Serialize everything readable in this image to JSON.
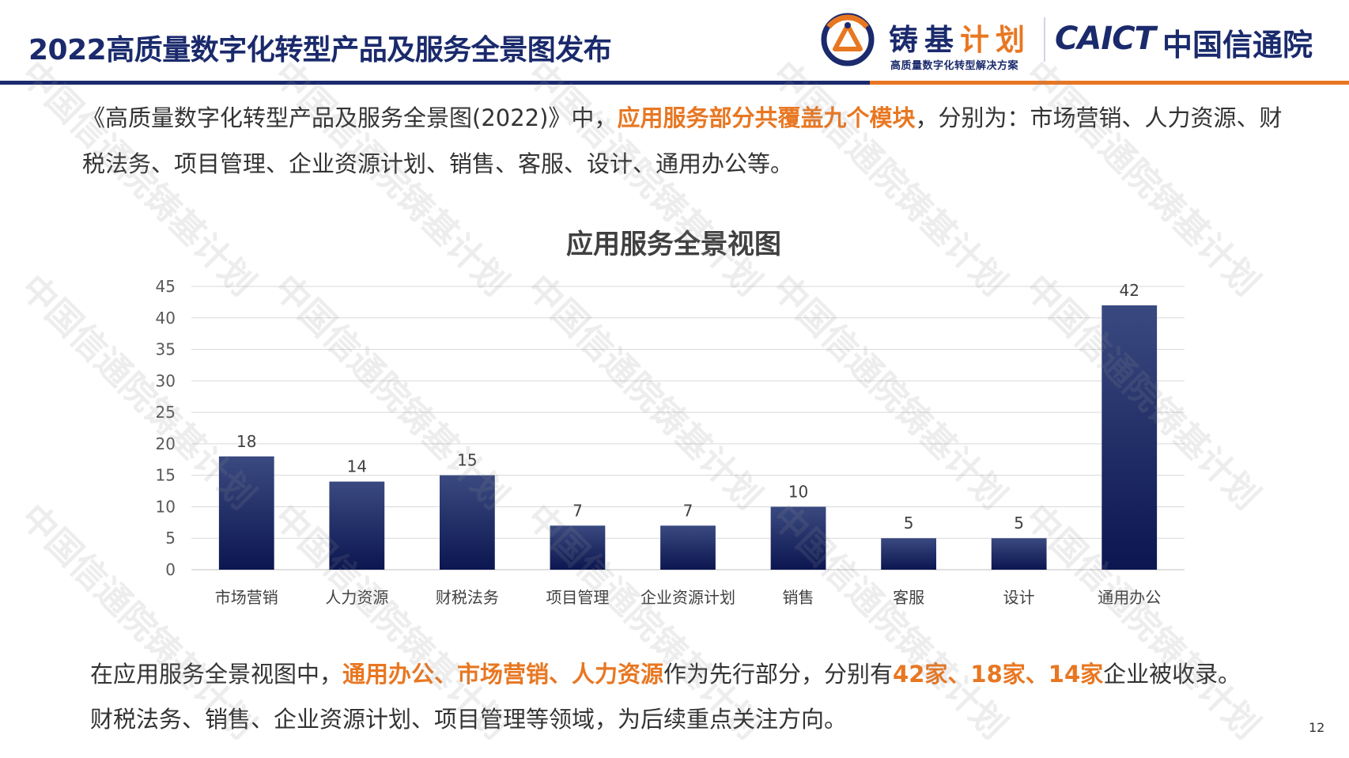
{
  "header": {
    "title": "2022高质量数字化转型产品及服务全景图发布",
    "logo_zhuji_a": "铸基",
    "logo_zhuji_b": "计划",
    "logo_zhuji_sub": "高质量数字化转型解决方案",
    "logo_caict": "CAICT",
    "logo_caict_cn": "中国信通院"
  },
  "intro": {
    "before": "《高质量数字化转型产品及服务全景图(2022)》中，",
    "highlight": "应用服务部分共覆盖九个模块",
    "after": "，分别为：市场营销、人力资源、财税法务、项目管理、企业资源计划、销售、客服、设计、通用办公等。"
  },
  "chart_data": {
    "type": "bar",
    "title": "应用服务全景视图",
    "categories": [
      "市场营销",
      "人力资源",
      "财税法务",
      "项目管理",
      "企业资源计划",
      "销售",
      "客服",
      "设计",
      "通用办公"
    ],
    "values": [
      18,
      14,
      15,
      7,
      7,
      10,
      5,
      5,
      42
    ],
    "ylim": [
      0,
      45
    ],
    "yticks": [
      0,
      5,
      10,
      15,
      20,
      25,
      30,
      35,
      40,
      45
    ],
    "grid": true,
    "data_labels": true,
    "bar_color_top": "#3a4a80",
    "bar_color_bottom": "#0c1650"
  },
  "summary": {
    "p1": "在应用服务全景视图中，",
    "h1": "通用办公、市场营销、人力资源",
    "p2": "作为先行部分，分别有",
    "h2": "42家、18家、14家",
    "p3": "企业被收录。财税法务、销售、企业资源计划、项目管理等领域，为后续重点关注方向。"
  },
  "page_number": "12",
  "watermark": {
    "text": "中国信通院铸基计划",
    "color": "#8c8c8c"
  },
  "colors": {
    "brand_blue": "#1a2a6c",
    "accent_orange": "#e87722"
  }
}
